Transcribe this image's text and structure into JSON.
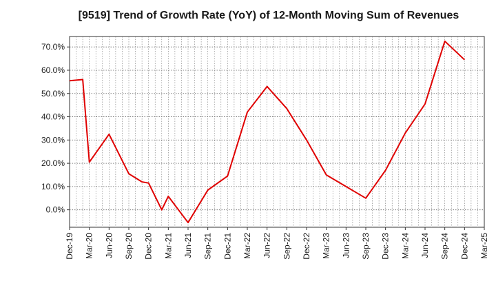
{
  "chart_data": {
    "type": "line",
    "title": "[9519]  Trend of Growth Rate (YoY) of 12-Month Moving Sum of Revenues",
    "xlabel": "",
    "ylabel": "",
    "x_tick_labels": [
      "Dec-19",
      "Mar-20",
      "Jun-20",
      "Sep-20",
      "Dec-20",
      "Mar-21",
      "Jun-21",
      "Sep-21",
      "Dec-21",
      "Mar-22",
      "Jun-22",
      "Sep-22",
      "Dec-22",
      "Mar-23",
      "Jun-23",
      "Sep-23",
      "Dec-23",
      "Mar-24",
      "Jun-24",
      "Sep-24",
      "Dec-24",
      "Mar-25"
    ],
    "y_tick_labels": [
      "0.0%",
      "10.0%",
      "20.0%",
      "30.0%",
      "40.0%",
      "50.0%",
      "60.0%",
      "70.0%"
    ],
    "y_ticks": [
      0,
      10,
      20,
      30,
      40,
      50,
      60,
      70
    ],
    "ylim": [
      -7.5,
      74.5
    ],
    "grid": true,
    "line_color": "#e00000",
    "series": [
      {
        "x": [
          "Dec-19",
          "Jan-20",
          "Feb-20",
          "Mar-20",
          "Apr-20",
          "May-20",
          "Jun-20",
          "Jul-20",
          "Aug-20",
          "Sep-20",
          "Oct-20",
          "Nov-20",
          "Dec-20",
          "Jan-21",
          "Feb-21",
          "Mar-21",
          "Apr-21",
          "May-21",
          "Jun-21",
          "Jul-21",
          "Aug-21",
          "Sep-21",
          "Oct-21",
          "Nov-21",
          "Dec-21",
          "Jan-22",
          "Feb-22",
          "Mar-22",
          "Apr-22",
          "May-22",
          "Jun-22",
          "Jul-22",
          "Aug-22",
          "Sep-22",
          "Oct-22",
          "Nov-22",
          "Dec-22",
          "Jan-23",
          "Feb-23",
          "Mar-23",
          "Apr-23",
          "May-23",
          "Jun-23",
          "Jul-23",
          "Aug-23",
          "Sep-23",
          "Oct-23",
          "Nov-23",
          "Dec-23",
          "Jan-24",
          "Feb-24",
          "Mar-24",
          "Apr-24",
          "May-24",
          "Jun-24",
          "Jul-24",
          "Aug-24",
          "Sep-24",
          "Oct-24",
          "Nov-24",
          "Dec-24"
        ],
        "values": [
          55.5,
          null,
          56.0,
          20.5,
          null,
          null,
          32.5,
          null,
          null,
          15.5,
          null,
          12.0,
          11.5,
          null,
          0.0,
          5.8,
          null,
          null,
          -5.5,
          null,
          null,
          8.5,
          null,
          null,
          14.5,
          null,
          null,
          42.0,
          null,
          null,
          53.0,
          null,
          null,
          43.5,
          null,
          null,
          30.0,
          null,
          null,
          15.0,
          null,
          null,
          10.0,
          null,
          null,
          5.0,
          null,
          null,
          17.0,
          null,
          null,
          33.0,
          null,
          null,
          45.5,
          null,
          null,
          72.5,
          null,
          null,
          64.5
        ]
      }
    ]
  }
}
